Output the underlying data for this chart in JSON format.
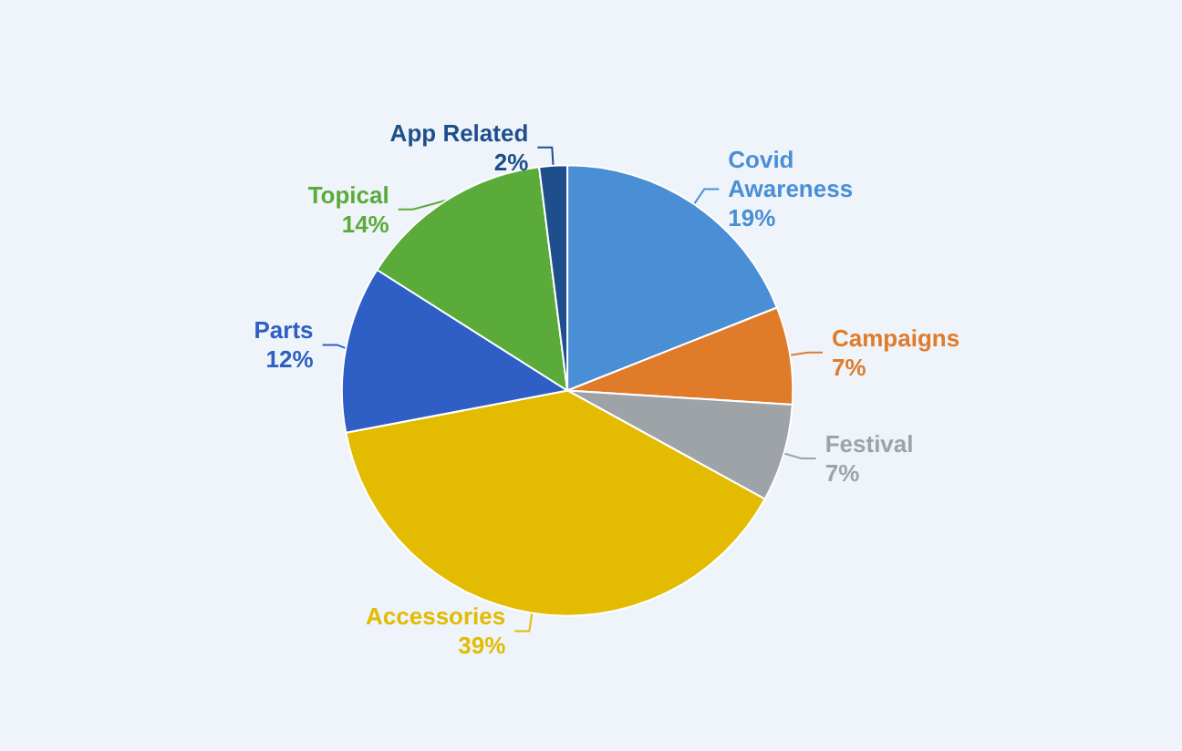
{
  "chart_data": {
    "type": "pie",
    "categories": [
      "Covid Awareness",
      "Campaigns",
      "Festival",
      "Accessories",
      "Parts",
      "Topical",
      "App Related"
    ],
    "values": [
      19,
      7,
      7,
      39,
      12,
      14,
      2
    ],
    "value_labels": [
      "19%",
      "7%",
      "7%",
      "39%",
      "12%",
      "14%",
      "2%"
    ],
    "colors": [
      "#4a8fd6",
      "#e07b2a",
      "#9ea3a8",
      "#e3bb00",
      "#2f5fc4",
      "#5aab3a",
      "#1f4e8c"
    ],
    "legend": false
  }
}
